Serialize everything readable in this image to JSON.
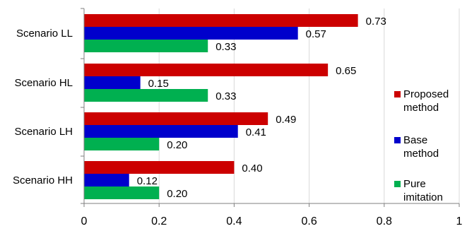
{
  "chart_data": {
    "type": "bar",
    "orientation": "horizontal",
    "categories": [
      "Scenario LL",
      "Scenario HL",
      "Scenario LH",
      "Scenario HH"
    ],
    "series": [
      {
        "name": "Proposed method",
        "color": "#cc0000",
        "values": [
          0.73,
          0.65,
          0.49,
          0.4
        ],
        "labels": [
          "0.73",
          "0.65",
          "0.49",
          "0.40"
        ]
      },
      {
        "name": "Base method",
        "color": "#0000cc",
        "values": [
          0.57,
          0.15,
          0.41,
          0.12
        ],
        "labels": [
          "0.57",
          "0.15",
          "0.41",
          "0.12"
        ]
      },
      {
        "name": "Pure imitation",
        "color": "#00b050",
        "values": [
          0.33,
          0.33,
          0.2,
          0.2
        ],
        "labels": [
          "0.33",
          "0.33",
          "0.20",
          "0.20"
        ]
      }
    ],
    "xlim": [
      0,
      1
    ],
    "xticks": [
      "0",
      "0.2",
      "0.4",
      "0.6",
      "0.8",
      "1"
    ],
    "grid": true,
    "legend": "right",
    "legend_lines": [
      [
        "Proposed",
        "method"
      ],
      [
        "Base",
        "method"
      ],
      [
        "Pure",
        "imitation"
      ]
    ]
  }
}
